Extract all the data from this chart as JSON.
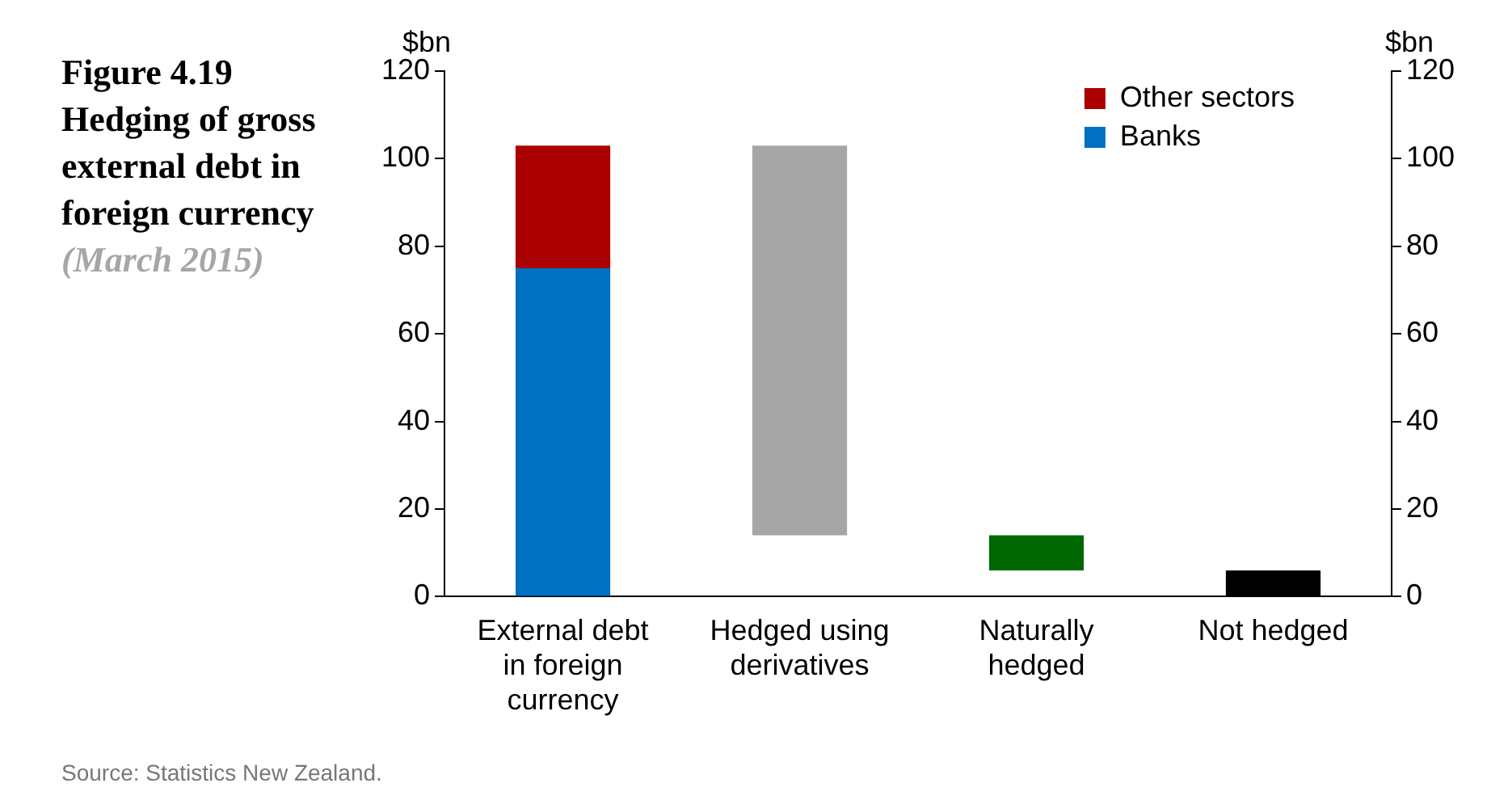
{
  "chart_data": {
    "type": "bar",
    "title": "Figure 4.19 Hedging of gross external debt in foreign currency",
    "subtitle": "(March 2015)",
    "ylabel": "$bn",
    "y2label": "$bn",
    "categories": [
      "External debt in foreign currency",
      "Hedged using derivatives",
      "Naturally hedged",
      "Not hedged"
    ],
    "series": [
      {
        "name": "Banks",
        "color": "#0070c0",
        "values": [
          75,
          null,
          null,
          null
        ]
      },
      {
        "name": "Other sectors",
        "color": "#aa0000",
        "values": [
          28,
          null,
          null,
          null
        ]
      },
      {
        "colors": [
          null,
          "#a6a6a6",
          "#006600",
          "#000000"
        ],
        "values": [
          null,
          89,
          8,
          6
        ],
        "base": [
          null,
          14,
          6,
          0
        ]
      }
    ],
    "stacked": true,
    "ylim": [
      0,
      120
    ],
    "yticks": [
      0,
      20,
      40,
      60,
      80,
      100,
      120
    ],
    "y2lim": [
      0,
      120
    ],
    "y2ticks": [
      0,
      20,
      40,
      60,
      80,
      100,
      120
    ],
    "grid": false,
    "legend": "top right",
    "annotations": [
      "Source: Statistics New Zealand."
    ]
  }
}
